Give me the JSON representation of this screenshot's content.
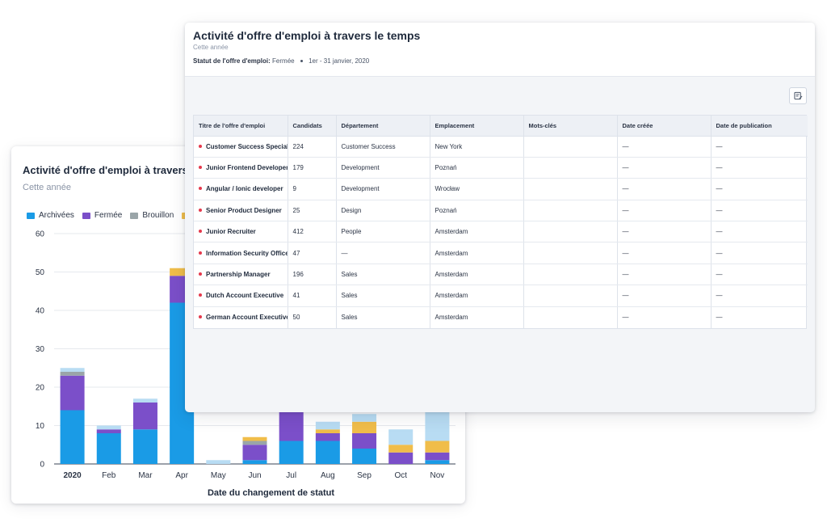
{
  "chart_card": {
    "title": "Activité d'offre d'emploi à travers le temps",
    "subtitle": "Cette année",
    "legend": [
      {
        "label": "Archivées",
        "color": "#1a9be6"
      },
      {
        "label": "Fermée",
        "color": "#7b4fc9"
      },
      {
        "label": "Brouillon",
        "color": "#9aa5a8"
      },
      {
        "label": "",
        "color": "#f0bd4a"
      }
    ]
  },
  "chart_data": {
    "type": "bar",
    "stacked": true,
    "categories": [
      "2020",
      "Feb",
      "Mar",
      "Apr",
      "May",
      "Jun",
      "Jul",
      "Aug",
      "Sep",
      "Oct",
      "Nov"
    ],
    "series": [
      {
        "name": "Archivées",
        "color": "#1a9be6",
        "values": [
          14,
          8,
          9,
          42,
          0,
          1,
          6,
          6,
          4,
          0,
          1
        ]
      },
      {
        "name": "Fermée",
        "color": "#7b4fc9",
        "values": [
          9,
          1,
          7,
          7,
          0,
          4,
          8,
          2,
          4,
          3,
          2
        ]
      },
      {
        "name": "Brouillon",
        "color": "#9aa5a8",
        "values": [
          1,
          0,
          0,
          0,
          0,
          1,
          0,
          0,
          0,
          0,
          0
        ]
      },
      {
        "color": "#f0bd4a",
        "values": [
          0,
          0,
          0,
          2,
          0,
          1,
          0,
          1,
          3,
          2,
          3
        ]
      },
      {
        "color": "#b8dcf3",
        "values": [
          1,
          1,
          1,
          0,
          1,
          0,
          0,
          2,
          2,
          4,
          8
        ]
      }
    ],
    "xlabel": "Date du changement de statut",
    "ylabel": "",
    "yticks": [
      0,
      10,
      20,
      30,
      40,
      50,
      60
    ],
    "ylim": [
      0,
      60
    ],
    "grid": true
  },
  "table_card": {
    "title": "Activité d'offre d'emploi à travers le temps",
    "subtitle": "Cette année",
    "filter_label": "Statut de l'offre d'emploi:",
    "filter_value": "Fermée",
    "date_range": "1er - 31 janvier, 2020",
    "export_icon": "table-edit-icon",
    "columns": [
      "Titre de l'offre d'emploi",
      "Candidats",
      "Département",
      "Emplacement",
      "Mots-clés",
      "Date créée",
      "Date de publication"
    ],
    "rows": [
      {
        "title": "Customer Success Specialist",
        "candidates": "224",
        "department": "Customer Success",
        "location": "New York",
        "keywords": "",
        "created": "—",
        "published": "—"
      },
      {
        "title": "Junior Frontend Developer",
        "candidates": "179",
        "department": "Development",
        "location": "Poznań",
        "keywords": "",
        "created": "—",
        "published": "—"
      },
      {
        "title": "Angular / Ionic developer",
        "candidates": "9",
        "department": "Development",
        "location": "Wrocław",
        "keywords": "",
        "created": "—",
        "published": "—"
      },
      {
        "title": "Senior Product Designer",
        "candidates": "25",
        "department": "Design",
        "location": "Poznań",
        "keywords": "",
        "created": "—",
        "published": "—"
      },
      {
        "title": "Junior Recruiter",
        "candidates": "412",
        "department": "People",
        "location": "Amsterdam",
        "keywords": "",
        "created": "—",
        "published": "—"
      },
      {
        "title": "Information Security Officer",
        "candidates": "47",
        "department": "—",
        "location": "Amsterdam",
        "keywords": "",
        "created": "—",
        "published": "—"
      },
      {
        "title": "Partnership Manager",
        "candidates": "196",
        "department": "Sales",
        "location": "Amsterdam",
        "keywords": "",
        "created": "—",
        "published": "—"
      },
      {
        "title": "Dutch Account Executive",
        "candidates": "41",
        "department": "Sales",
        "location": "Amsterdam",
        "keywords": "",
        "created": "—",
        "published": "—"
      },
      {
        "title": "German Account Executive",
        "candidates": "50",
        "department": "Sales",
        "location": "Amsterdam",
        "keywords": "",
        "created": "—",
        "published": "—"
      }
    ]
  }
}
